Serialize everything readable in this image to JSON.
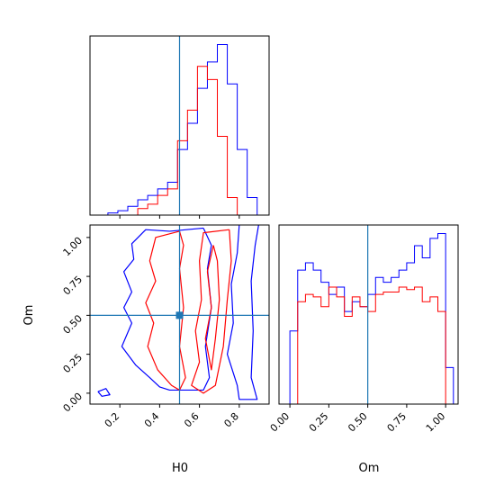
{
  "colors": {
    "series_blue": "#0000ff",
    "series_red": "#ff0000",
    "truth": "#1f77b4"
  },
  "labels": {
    "h0": "H0",
    "om": "Om"
  },
  "chart_data": [
    {
      "type": "histogram",
      "panel": "H0 marginal",
      "xlim": [
        0.05,
        0.95
      ],
      "truth": 0.5,
      "edges": [
        0.14,
        0.19,
        0.24,
        0.29,
        0.34,
        0.39,
        0.44,
        0.49,
        0.54,
        0.59,
        0.64,
        0.69,
        0.74,
        0.79,
        0.84,
        0.89
      ],
      "series": [
        {
          "color": "blue",
          "values": [
            1,
            2,
            4,
            7,
            9,
            12,
            15,
            30,
            42,
            58,
            70,
            78,
            60,
            30,
            8,
            0
          ]
        },
        {
          "color": "red",
          "values": [
            0,
            0,
            0,
            3,
            5,
            9,
            12,
            34,
            48,
            68,
            62,
            36,
            8,
            0,
            0,
            0
          ]
        }
      ]
    },
    {
      "type": "contour",
      "panel": "H0 vs Om joint",
      "xlabel": "H0",
      "ylabel": "Om",
      "xlim": [
        0.05,
        0.95
      ],
      "ylim": [
        -0.07,
        1.08
      ],
      "x_ticks": [
        "0.2",
        "0.4",
        "0.6",
        "0.8"
      ],
      "y_ticks": [
        "0.00",
        "0.25",
        "0.50",
        "0.75",
        "1.00"
      ],
      "truth": [
        0.5,
        0.5
      ],
      "contours": [
        {
          "color": "blue",
          "points": [
            [
              0.62,
              1.06
            ],
            [
              0.45,
              1.04
            ],
            [
              0.33,
              1.05
            ],
            [
              0.26,
              0.96
            ],
            [
              0.27,
              0.86
            ],
            [
              0.22,
              0.78
            ],
            [
              0.26,
              0.65
            ],
            [
              0.22,
              0.55
            ],
            [
              0.26,
              0.45
            ],
            [
              0.21,
              0.3
            ],
            [
              0.28,
              0.18
            ],
            [
              0.35,
              0.1
            ],
            [
              0.4,
              0.04
            ],
            [
              0.45,
              0.02
            ],
            [
              0.62,
              0.02
            ],
            [
              0.65,
              0.1
            ],
            [
              0.63,
              0.3
            ],
            [
              0.66,
              0.55
            ],
            [
              0.64,
              0.8
            ],
            [
              0.66,
              0.95
            ],
            [
              0.62,
              1.06
            ]
          ]
        },
        {
          "color": "blue",
          "points": [
            [
              0.9,
              1.1
            ],
            [
              0.8,
              1.08
            ],
            [
              0.79,
              0.9
            ],
            [
              0.76,
              0.7
            ],
            [
              0.77,
              0.45
            ],
            [
              0.74,
              0.25
            ],
            [
              0.79,
              0.05
            ],
            [
              0.8,
              -0.04
            ],
            [
              0.89,
              -0.04
            ],
            [
              0.86,
              0.1
            ],
            [
              0.87,
              0.4
            ],
            [
              0.86,
              0.72
            ],
            [
              0.88,
              0.95
            ],
            [
              0.9,
              1.1
            ]
          ]
        },
        {
          "color": "blue",
          "points": [
            [
              0.09,
              0.01
            ],
            [
              0.13,
              0.03
            ],
            [
              0.15,
              -0.01
            ],
            [
              0.11,
              -0.02
            ],
            [
              0.09,
              0.01
            ]
          ]
        },
        {
          "color": "red",
          "points": [
            [
              0.5,
              1.04
            ],
            [
              0.38,
              1.0
            ],
            [
              0.35,
              0.85
            ],
            [
              0.38,
              0.72
            ],
            [
              0.33,
              0.58
            ],
            [
              0.37,
              0.45
            ],
            [
              0.34,
              0.3
            ],
            [
              0.39,
              0.15
            ],
            [
              0.46,
              0.05
            ],
            [
              0.5,
              0.02
            ],
            [
              0.53,
              0.1
            ],
            [
              0.5,
              0.3
            ],
            [
              0.52,
              0.55
            ],
            [
              0.5,
              0.8
            ],
            [
              0.52,
              0.95
            ],
            [
              0.5,
              1.04
            ]
          ]
        },
        {
          "color": "red",
          "points": [
            [
              0.75,
              1.05
            ],
            [
              0.62,
              1.03
            ],
            [
              0.6,
              0.85
            ],
            [
              0.61,
              0.6
            ],
            [
              0.58,
              0.4
            ],
            [
              0.6,
              0.2
            ],
            [
              0.56,
              0.05
            ],
            [
              0.62,
              0.0
            ],
            [
              0.68,
              0.05
            ],
            [
              0.72,
              0.3
            ],
            [
              0.74,
              0.6
            ],
            [
              0.76,
              0.85
            ],
            [
              0.75,
              1.05
            ]
          ]
        },
        {
          "color": "red",
          "points": [
            [
              0.67,
              0.95
            ],
            [
              0.64,
              0.78
            ],
            [
              0.66,
              0.55
            ],
            [
              0.63,
              0.35
            ],
            [
              0.66,
              0.15
            ],
            [
              0.68,
              0.35
            ],
            [
              0.7,
              0.6
            ],
            [
              0.69,
              0.85
            ],
            [
              0.67,
              0.95
            ]
          ]
        }
      ]
    },
    {
      "type": "histogram",
      "panel": "Om marginal",
      "xlabel": "Om",
      "xlim": [
        -0.07,
        1.08
      ],
      "x_ticks": [
        "0.00",
        "0.25",
        "0.50",
        "0.75",
        "1.00"
      ],
      "truth": 0.5,
      "edges": [
        -0.05,
        0.0,
        0.05,
        0.1,
        0.15,
        0.2,
        0.25,
        0.3,
        0.35,
        0.4,
        0.45,
        0.5,
        0.55,
        0.6,
        0.65,
        0.7,
        0.75,
        0.8,
        0.85,
        0.9,
        0.95,
        1.0,
        1.05,
        1.1
      ],
      "series": [
        {
          "color": "blue",
          "values": [
            0,
            30,
            55,
            58,
            55,
            50,
            45,
            48,
            38,
            42,
            40,
            45,
            52,
            50,
            52,
            55,
            58,
            65,
            60,
            68,
            70,
            15,
            0
          ]
        },
        {
          "color": "red",
          "values": [
            0,
            0,
            42,
            45,
            44,
            40,
            48,
            44,
            36,
            44,
            40,
            38,
            45,
            46,
            46,
            48,
            47,
            48,
            42,
            44,
            38,
            0,
            0
          ]
        }
      ]
    }
  ]
}
